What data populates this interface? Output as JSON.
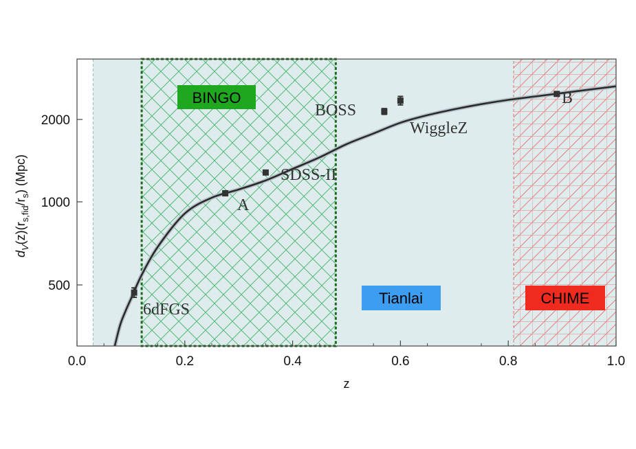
{
  "chart_data": {
    "type": "line",
    "xlabel": "z",
    "ylabel_parts": {
      "d": "d",
      "v": "V",
      "z": "(z)(r",
      "sfid": "s,fid",
      "slash": "/r",
      "s": "s",
      "close": ") (Mpc)"
    },
    "xlim": [
      0.0,
      1.0
    ],
    "ylim": [
      150,
      2500
    ],
    "x_ticks": [
      "0.0",
      "0.2",
      "0.4",
      "0.6",
      "0.8",
      "1.0"
    ],
    "y_ticks": [
      "500",
      "1000",
      "2000"
    ],
    "y_tick_values": [
      500,
      1000,
      2000
    ],
    "grid": false,
    "bands": [
      {
        "label": "BINGO",
        "range": [
          0.12,
          0.48
        ],
        "color": "#1fa71f",
        "text_color": "#000000"
      },
      {
        "label": "Tianlai",
        "range": [
          0.03,
          1.0
        ],
        "color": "#3d9df0",
        "text_color": "#000000"
      },
      {
        "label": "CHIME",
        "range": [
          0.81,
          1.0
        ],
        "color": "#ef2b1f",
        "text_color": "#000000"
      }
    ],
    "curve": {
      "x": [
        0.07,
        0.08,
        0.09,
        0.1,
        0.12,
        0.15,
        0.2,
        0.25,
        0.3,
        0.35,
        0.4,
        0.45,
        0.5,
        0.55,
        0.6,
        0.65,
        0.7,
        0.75,
        0.8,
        0.85,
        0.9,
        0.95,
        1.0
      ],
      "y": [
        150,
        270,
        350,
        420,
        560,
        730,
        930,
        1050,
        1150,
        1260,
        1400,
        1540,
        1700,
        1830,
        1960,
        2050,
        2120,
        2180,
        2230,
        2270,
        2310,
        2350,
        2390
      ]
    },
    "points": [
      {
        "label": "6dFGS",
        "x": 0.106,
        "y": 456,
        "err": 27
      },
      {
        "label": "A",
        "x": 0.275,
        "y": 1104,
        "err": 30
      },
      {
        "label": "SDSS-II",
        "x": 0.35,
        "y": 1356,
        "err": 25
      },
      {
        "label": "BOSS",
        "x": 0.57,
        "y": 2094,
        "err": 34
      },
      {
        "label": "WiggleZ",
        "x": 0.6,
        "y": 2221,
        "err": 50
      },
      {
        "label": "B",
        "x": 0.89,
        "y": 2300,
        "err": 20
      }
    ],
    "colors": {
      "curve": "#2b2b2b",
      "background": "#deecef",
      "points": "#333333"
    }
  }
}
